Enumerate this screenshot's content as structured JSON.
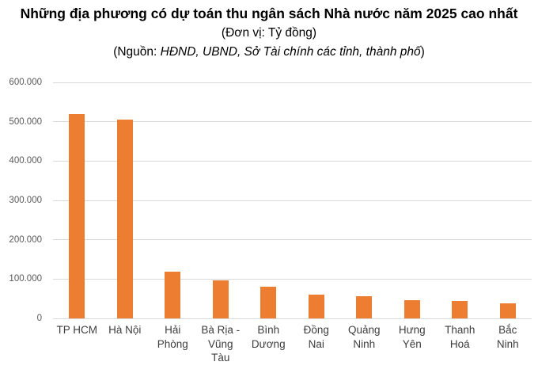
{
  "header": {
    "title": "Những địa phương có dự toán thu ngân sách Nhà nước năm 2025 cao nhất",
    "subtitle": "(Đơn vị: Tỷ đồng)",
    "source_prefix": "(Nguồn: ",
    "source_italic": "HĐND, UBND, Sở Tài chính các tỉnh, thành phố",
    "source_suffix": ")"
  },
  "chart_data": {
    "type": "bar",
    "title": "Những địa phương có dự toán thu ngân sách Nhà nước năm 2025 cao nhất",
    "unit": "Tỷ đồng",
    "categories": [
      "TP HCM",
      "Hà Nội",
      "Hải Phòng",
      "Bà Rịa - Vũng Tàu",
      "Bình Dương",
      "Đồng Nai",
      "Quảng Ninh",
      "Hưng Yên",
      "Thanh Hoá",
      "Bắc Ninh"
    ],
    "category_display_lines": [
      [
        "TP HCM"
      ],
      [
        "Hà Nội"
      ],
      [
        "Hải",
        "Phòng"
      ],
      [
        "Bà Rịa -",
        "Vũng",
        "Tàu"
      ],
      [
        "Bình",
        "Dương"
      ],
      [
        "Đồng",
        "Nai"
      ],
      [
        "Quảng",
        "Ninh"
      ],
      [
        "Hưng",
        "Yên"
      ],
      [
        "Thanh",
        "Hoá"
      ],
      [
        "Bắc",
        "Ninh"
      ]
    ],
    "values": [
      520000,
      505000,
      118000,
      96000,
      80000,
      61000,
      57000,
      46000,
      45000,
      38000
    ],
    "xlabel": "",
    "ylabel": "",
    "ylim": [
      0,
      600000
    ],
    "ytick_step": 100000,
    "ytick_labels": [
      "0",
      "100.000",
      "200.000",
      "300.000",
      "400.000",
      "500.000",
      "600.000"
    ],
    "bar_color": "#ED7D31",
    "gridline_color": "#D9D9D9",
    "grid": true,
    "legend_position": "none"
  }
}
